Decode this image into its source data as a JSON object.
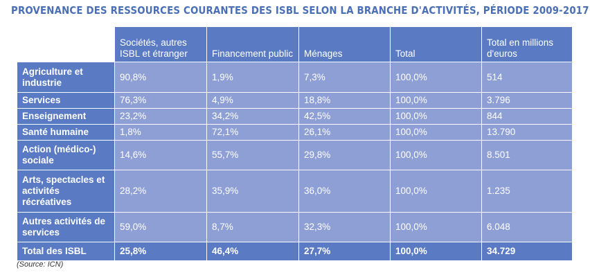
{
  "title": "PROVENANCE DES RESSOURCES COURANTES DES ISBL SELON LA BRANCHE D'ACTIVITÉS, PÉRIODE 2009-2017",
  "table": {
    "headers": [
      "Sociétés, autres ISBL et étranger",
      "Financement public",
      "Ménages",
      "Total",
      "Total en millions d'euros"
    ],
    "rows": [
      {
        "label": "Agriculture et industrie",
        "cells": [
          "90,8%",
          "1,9%",
          "7,3%",
          "100,0%",
          "514"
        ]
      },
      {
        "label": "Services",
        "cells": [
          "76,3%",
          "4,9%",
          "18,8%",
          "100,0%",
          "3.796"
        ]
      },
      {
        "label": "Enseignement",
        "cells": [
          "23,2%",
          "34,2%",
          "42,5%",
          "100,0%",
          "844"
        ]
      },
      {
        "label": "Santé humaine",
        "cells": [
          "1,8%",
          "72,1%",
          "26,1%",
          "100,0%",
          "13.790"
        ]
      },
      {
        "label": "Action (médico-) sociale",
        "cells": [
          "14,6%",
          "55,7%",
          "29,8%",
          "100,0%",
          "8.501"
        ]
      },
      {
        "label": "Arts, spectacles et activités récréatives",
        "cells": [
          "28,2%",
          "35,9%",
          "36,0%",
          "100,0%",
          "1.235"
        ]
      },
      {
        "label": "Autres activités de services",
        "cells": [
          "59,0%",
          "8,7%",
          "32,3%",
          "100,0%",
          "6.048"
        ]
      },
      {
        "label": "Total des ISBL",
        "cells": [
          "25,8%",
          "46,4%",
          "27,7%",
          "100,0%",
          "34.729"
        ]
      }
    ]
  },
  "source": "(Source: ICN)",
  "colors": {
    "title": "#4a6fb5",
    "header_bg": "#5a7bc4",
    "cell_bg": "#8e9fd6",
    "text": "#ffffff"
  }
}
